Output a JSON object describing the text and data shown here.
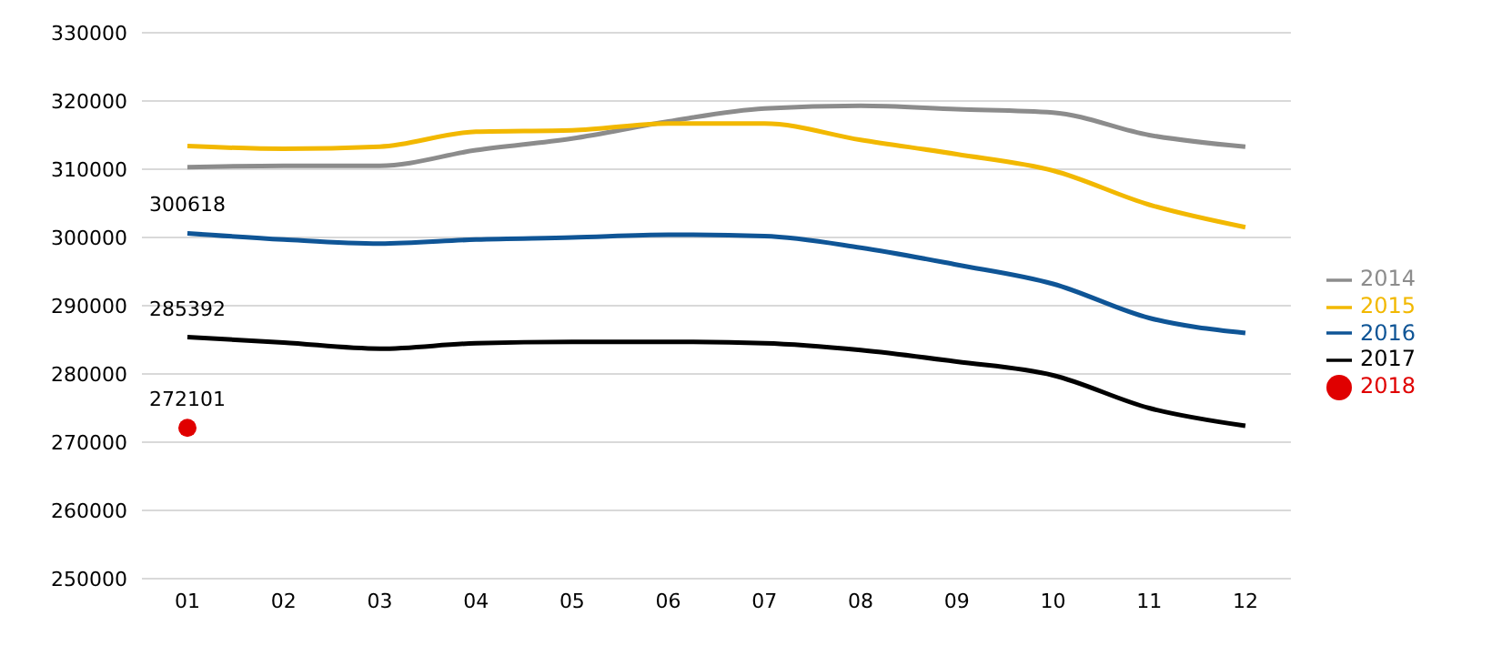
{
  "chart_data": {
    "type": "line",
    "categories": [
      "01",
      "02",
      "03",
      "04",
      "05",
      "06",
      "07",
      "08",
      "09",
      "10",
      "11",
      "12"
    ],
    "ylim": [
      250000,
      330000
    ],
    "yticks": [
      250000,
      260000,
      270000,
      280000,
      290000,
      300000,
      310000,
      320000,
      330000
    ],
    "grid": "y",
    "legend": "right",
    "series": [
      {
        "name": "2014",
        "color": "#8c8c8c",
        "marker": "none",
        "values": [
          310300,
          310500,
          310500,
          312800,
          314500,
          317000,
          318900,
          319300,
          318800,
          318300,
          315000,
          313300
        ]
      },
      {
        "name": "2015",
        "color": "#f2b800",
        "marker": "none",
        "values": [
          313400,
          313000,
          313300,
          315500,
          315700,
          316700,
          316700,
          314300,
          312200,
          309800,
          304800,
          301500
        ]
      },
      {
        "name": "2016",
        "color": "#0f5596",
        "marker": "none",
        "values": [
          300618,
          299700,
          299100,
          299700,
          300000,
          300400,
          300200,
          298500,
          296000,
          293200,
          288200,
          286000
        ],
        "value_labels": [
          "300618",
          null,
          null,
          null,
          null,
          null,
          null,
          null,
          null,
          null,
          null,
          null
        ]
      },
      {
        "name": "2017",
        "color": "#000000",
        "marker": "none",
        "values": [
          285392,
          284600,
          283700,
          284500,
          284700,
          284700,
          284500,
          283500,
          281800,
          279800,
          275000,
          272400
        ],
        "value_labels": [
          "285392",
          null,
          null,
          null,
          null,
          null,
          null,
          null,
          null,
          null,
          null,
          null
        ]
      },
      {
        "name": "2018",
        "color": "#e00000",
        "marker": "circle",
        "values": [
          272101,
          null,
          null,
          null,
          null,
          null,
          null,
          null,
          null,
          null,
          null,
          null
        ],
        "value_labels": [
          "272101",
          null,
          null,
          null,
          null,
          null,
          null,
          null,
          null,
          null,
          null,
          null
        ]
      }
    ]
  }
}
